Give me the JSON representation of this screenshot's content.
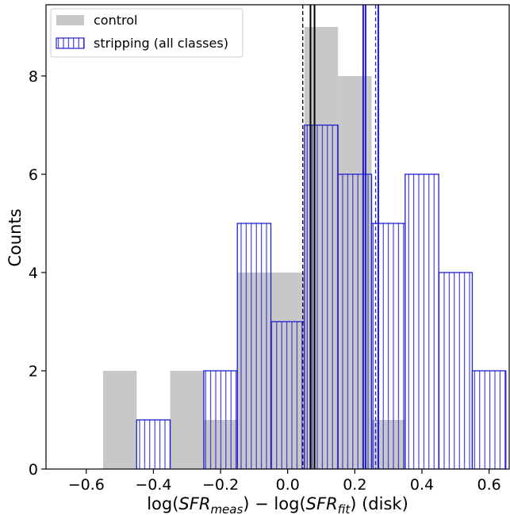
{
  "chart_data": {
    "type": "bar",
    "xlabel": "log(SFR_meas) − log(SFR_fit) (disk)",
    "xlabel_parts": {
      "prefix": "log(",
      "var1": "SFR",
      "sub1": "meas",
      "middle": ") − log(",
      "var2": "SFR",
      "sub2": "fit",
      "suffix": ") (disk)"
    },
    "ylabel": "Counts",
    "xlim": [
      -0.72,
      0.66
    ],
    "ylim": [
      0,
      9.45
    ],
    "bin_width": 0.1,
    "x_ticks": [
      -0.6,
      -0.4,
      -0.2,
      0.0,
      0.2,
      0.4,
      0.6
    ],
    "x_tick_labels": [
      "−0.6",
      "−0.4",
      "−0.2",
      "0.0",
      "0.2",
      "0.4",
      "0.6"
    ],
    "y_ticks": [
      0,
      2,
      4,
      6,
      8
    ],
    "y_tick_labels": [
      "0",
      "2",
      "4",
      "6",
      "8"
    ],
    "legend_position": "top-left",
    "series": [
      {
        "name": "control",
        "style": "filled",
        "color": "#c8c8c8",
        "bins": [
          {
            "x0": -0.55,
            "x1": -0.45,
            "count": 2
          },
          {
            "x0": -0.45,
            "x1": -0.35,
            "count": 0
          },
          {
            "x0": -0.35,
            "x1": -0.25,
            "count": 2
          },
          {
            "x0": -0.25,
            "x1": -0.15,
            "count": 1
          },
          {
            "x0": -0.15,
            "x1": -0.05,
            "count": 4
          },
          {
            "x0": -0.05,
            "x1": 0.05,
            "count": 4
          },
          {
            "x0": 0.05,
            "x1": 0.15,
            "count": 9
          },
          {
            "x0": 0.15,
            "x1": 0.25,
            "count": 8
          },
          {
            "x0": 0.25,
            "x1": 0.35,
            "count": 1
          }
        ]
      },
      {
        "name": "stripping (all classes)",
        "style": "hatched",
        "color": "#1f1fd0",
        "bins": [
          {
            "x0": -0.45,
            "x1": -0.35,
            "count": 1
          },
          {
            "x0": -0.35,
            "x1": -0.25,
            "count": 0
          },
          {
            "x0": -0.25,
            "x1": -0.15,
            "count": 2
          },
          {
            "x0": -0.15,
            "x1": -0.05,
            "count": 5
          },
          {
            "x0": -0.05,
            "x1": 0.05,
            "count": 3
          },
          {
            "x0": 0.05,
            "x1": 0.15,
            "count": 7
          },
          {
            "x0": 0.15,
            "x1": 0.25,
            "count": 6
          },
          {
            "x0": 0.25,
            "x1": 0.35,
            "count": 5
          },
          {
            "x0": 0.35,
            "x1": 0.45,
            "count": 6
          },
          {
            "x0": 0.45,
            "x1": 0.55,
            "count": 4
          },
          {
            "x0": 0.55,
            "x1": 0.65,
            "count": 2
          }
        ]
      }
    ],
    "reference_lines": [
      {
        "series": "control",
        "x": 0.045,
        "style": "dashed",
        "color": "#000000"
      },
      {
        "series": "control",
        "x": 0.068,
        "style": "solid",
        "color": "#000000"
      },
      {
        "series": "control",
        "x": 0.08,
        "style": "solid",
        "color": "#000000"
      },
      {
        "series": "stripping (all classes)",
        "x": 0.225,
        "style": "solid",
        "color": "#1f1fd0"
      },
      {
        "series": "stripping (all classes)",
        "x": 0.232,
        "style": "solid",
        "color": "#1f1fd0"
      },
      {
        "series": "stripping (all classes)",
        "x": 0.262,
        "style": "dashed",
        "color": "#1f1fd0"
      },
      {
        "series": "stripping (all classes)",
        "x": 0.27,
        "style": "solid",
        "color": "#1f1fd0"
      }
    ]
  }
}
